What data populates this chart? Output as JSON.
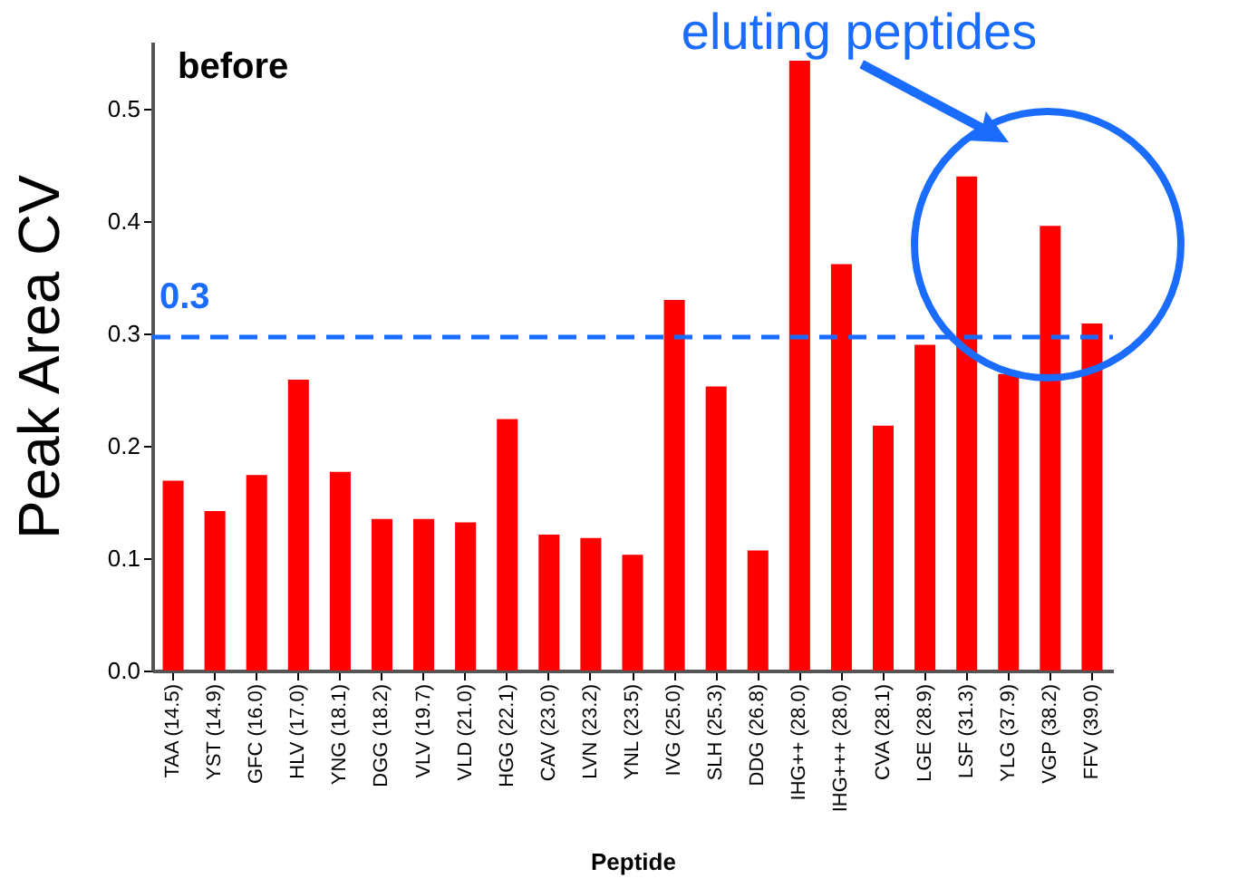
{
  "chart_data": {
    "type": "bar",
    "xlabel": "Peptide",
    "ylabel": "Peak Area CV",
    "categories": [
      "TAA (14.5)",
      "YST (14.9)",
      "GFC (16.0)",
      "HLV (17.0)",
      "YNG (18.1)",
      "DGG (18.2)",
      "VLV (19.7)",
      "VLD (21.0)",
      "HGG (22.1)",
      "CAV (23.0)",
      "LVN (23.2)",
      "YNL (23.5)",
      "IVG (25.0)",
      "SLH (25.3)",
      "DDG (26.8)",
      "IHG++ (28.0)",
      "IHG+++ (28.0)",
      "CVA (28.1)",
      "LGE (28.9)",
      "LSF (31.3)",
      "YLG (37.9)",
      "VGP (38.2)",
      "FFV (39.0)"
    ],
    "values": [
      0.169,
      0.142,
      0.174,
      0.259,
      0.177,
      0.135,
      0.135,
      0.132,
      0.224,
      0.121,
      0.118,
      0.103,
      0.33,
      0.253,
      0.107,
      0.543,
      0.362,
      0.218,
      0.29,
      0.44,
      0.264,
      0.396,
      0.309
    ],
    "color": "#ff0000",
    "ylim": [
      0,
      0.56
    ],
    "yticks": [
      {
        "value": 0.0,
        "label": "0.0"
      },
      0.1,
      0.2,
      0.3,
      0.4,
      0.5
    ],
    "ref_lines": [
      {
        "axis": "y",
        "value": 0.297,
        "label": "0.3",
        "color": "#1a6cff",
        "line_style": "dashed"
      }
    ],
    "annotations": [
      "before",
      "eluting peptides"
    ]
  }
}
